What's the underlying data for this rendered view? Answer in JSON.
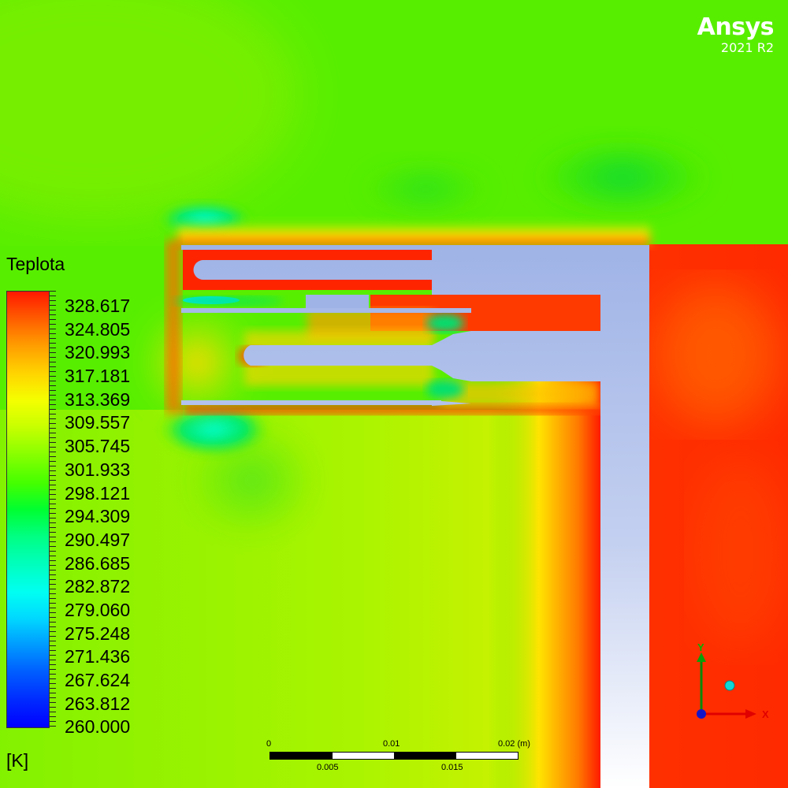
{
  "brand": {
    "name": "Ansys",
    "version": "2021 R2"
  },
  "legend": {
    "title": "Teplota",
    "unit": "[K]",
    "min": 260.0,
    "max": 328.617,
    "labels": [
      "328.617",
      "324.805",
      "320.993",
      "317.181",
      "313.369",
      "309.557",
      "305.745",
      "301.933",
      "298.121",
      "294.309",
      "290.497",
      "286.685",
      "282.872",
      "279.060",
      "275.248",
      "271.436",
      "267.624",
      "263.812",
      "260.000"
    ]
  },
  "scale": {
    "labels_top": [
      "0",
      "0.01",
      "0.02 (m)"
    ],
    "labels_bottom": [
      "0.005",
      "0.015"
    ]
  },
  "axes": {
    "x": "X",
    "y": "Y"
  },
  "colors": {
    "hot": "#ff2200",
    "warm": "#ffe100",
    "ambient": "#55ee00",
    "cool": "#00dd44",
    "cold": "#00e5ff",
    "solid": "#9fb3e6",
    "white": "#ffffff"
  }
}
